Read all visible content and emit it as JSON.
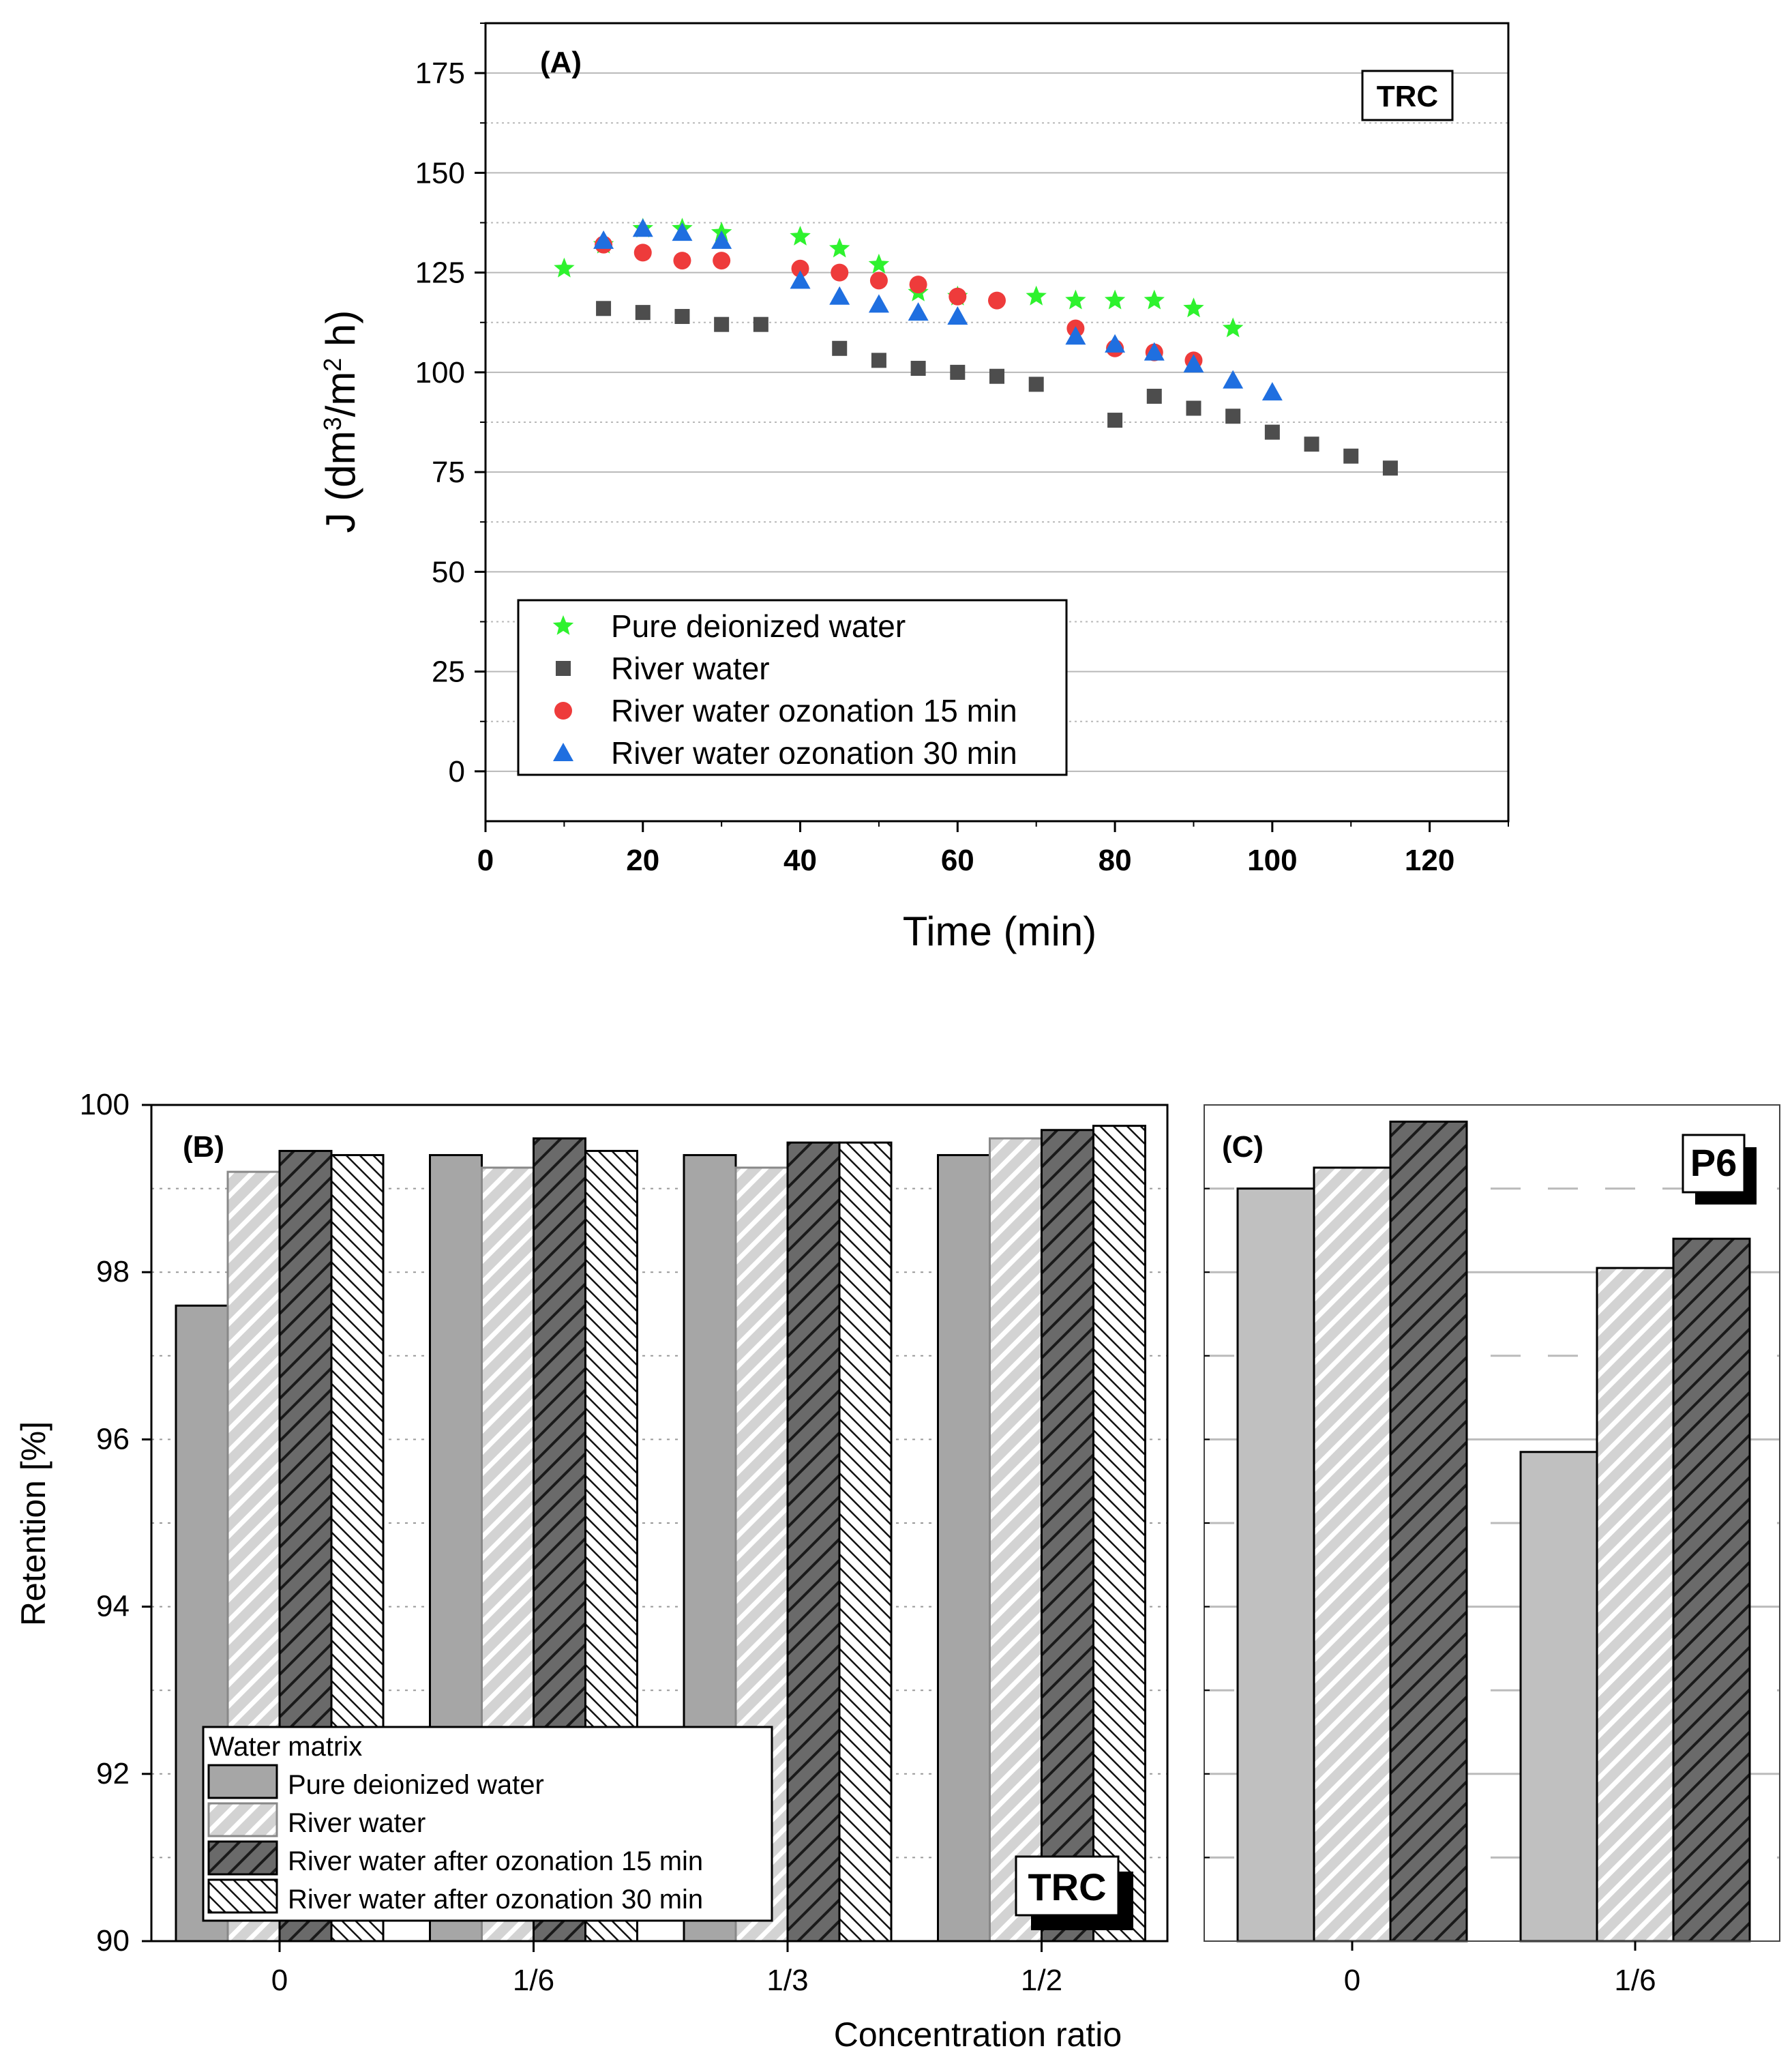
{
  "chart_data": [
    {
      "id": "A",
      "type": "scatter",
      "panel_label": "(A)",
      "tag": "TRC",
      "xlabel": "Time (min)",
      "ylabel": "J (dm3/m2 h)",
      "ylabel_parts": {
        "pre": "J (dm",
        "sup1": "3",
        "mid": "/m",
        "sup2": "2",
        "post": " h)"
      },
      "xlim": [
        0,
        130
      ],
      "ylim": [
        -12.5,
        187.5
      ],
      "xticks": [
        0,
        20,
        40,
        60,
        80,
        100,
        120
      ],
      "xtick_labels": [
        "0",
        "20",
        "40",
        "60",
        "80",
        "100",
        "120"
      ],
      "yticks": [
        0,
        25,
        50,
        75,
        100,
        125,
        150,
        175
      ],
      "ytick_labels": [
        "0",
        "25",
        "50",
        "75",
        "100",
        "125",
        "150",
        "175"
      ],
      "grid": true,
      "legend_position": "bottom-left",
      "series": [
        {
          "name": "Pure deionized water",
          "marker": "star",
          "color": "#2ef22e",
          "x": [
            10,
            15,
            20,
            25,
            30,
            40,
            45,
            50,
            55,
            60,
            70,
            75,
            80,
            85,
            90,
            95
          ],
          "y": [
            126,
            132,
            136,
            136,
            135,
            134,
            131,
            127,
            120,
            119,
            119,
            118,
            118,
            118,
            116,
            111
          ]
        },
        {
          "name": "River water",
          "marker": "square",
          "color": "#4d4d4d",
          "x": [
            15,
            20,
            25,
            30,
            35,
            45,
            50,
            55,
            60,
            65,
            70,
            80,
            85,
            90,
            95,
            100,
            105,
            110,
            115
          ],
          "y": [
            116,
            115,
            114,
            112,
            112,
            106,
            103,
            101,
            100,
            99,
            97,
            88,
            94,
            91,
            89,
            85,
            82,
            79,
            76
          ]
        },
        {
          "name": "River water ozonation 15 min",
          "marker": "circle",
          "color": "#ee3b3b",
          "x": [
            15,
            20,
            25,
            30,
            40,
            45,
            50,
            55,
            60,
            65,
            75,
            80,
            85,
            90
          ],
          "y": [
            132,
            130,
            128,
            128,
            126,
            125,
            123,
            122,
            119,
            118,
            111,
            106,
            105,
            103
          ]
        },
        {
          "name": "River water ozonation 30 min",
          "marker": "triangle",
          "color": "#1f6fe0",
          "x": [
            15,
            20,
            25,
            30,
            40,
            45,
            50,
            55,
            60,
            75,
            80,
            85,
            90,
            95,
            100
          ],
          "y": [
            133,
            136,
            135,
            133,
            123,
            119,
            117,
            115,
            114,
            109,
            107,
            105,
            102,
            98,
            95
          ]
        }
      ]
    },
    {
      "id": "B",
      "type": "bar",
      "panel_label": "(B)",
      "tag": "TRC",
      "xlabel": "Concentration ratio",
      "ylabel": "Retention [%]",
      "categories": [
        "0",
        "1/6",
        "1/3",
        "1/2"
      ],
      "ylim": [
        90,
        100
      ],
      "yticks": [
        90,
        92,
        94,
        96,
        98,
        100
      ],
      "ytick_labels": [
        "90",
        "92",
        "94",
        "96",
        "98",
        "100"
      ],
      "legend_title": "Water matrix",
      "legend_position": "bottom-left",
      "series": [
        {
          "name": "Pure deionized water",
          "fill": "#a6a6a6",
          "pattern": "solid",
          "values": [
            97.6,
            99.4,
            99.4,
            99.4
          ]
        },
        {
          "name": "River water",
          "fill": "#d6d6d6",
          "pattern": "hatch-white",
          "values": [
            99.2,
            99.25,
            99.25,
            99.6
          ]
        },
        {
          "name": "River water after ozonation 15 min",
          "fill": "#666666",
          "pattern": "hatch-dark",
          "values": [
            99.45,
            99.6,
            99.55,
            99.7
          ]
        },
        {
          "name": "River water after ozonation 30 min",
          "fill": "#ffffff",
          "pattern": "hatch-back",
          "values": [
            99.4,
            99.45,
            99.55,
            99.75
          ]
        }
      ]
    },
    {
      "id": "C",
      "type": "bar",
      "panel_label": "(C)",
      "tag": "P6",
      "categories": [
        "0",
        "1/6"
      ],
      "ylim": [
        90,
        100
      ],
      "series": [
        {
          "name": "Pure deionized water",
          "fill": "#c0c0c0",
          "pattern": "solid",
          "values": [
            99.0,
            95.85
          ]
        },
        {
          "name": "River water",
          "fill": "#d6d6d6",
          "pattern": "hatch-white",
          "values": [
            99.25,
            98.05
          ]
        },
        {
          "name": "River water after ozonation 15 min",
          "fill": "#666666",
          "pattern": "hatch-dark",
          "values": [
            99.8,
            98.4
          ]
        }
      ]
    }
  ]
}
